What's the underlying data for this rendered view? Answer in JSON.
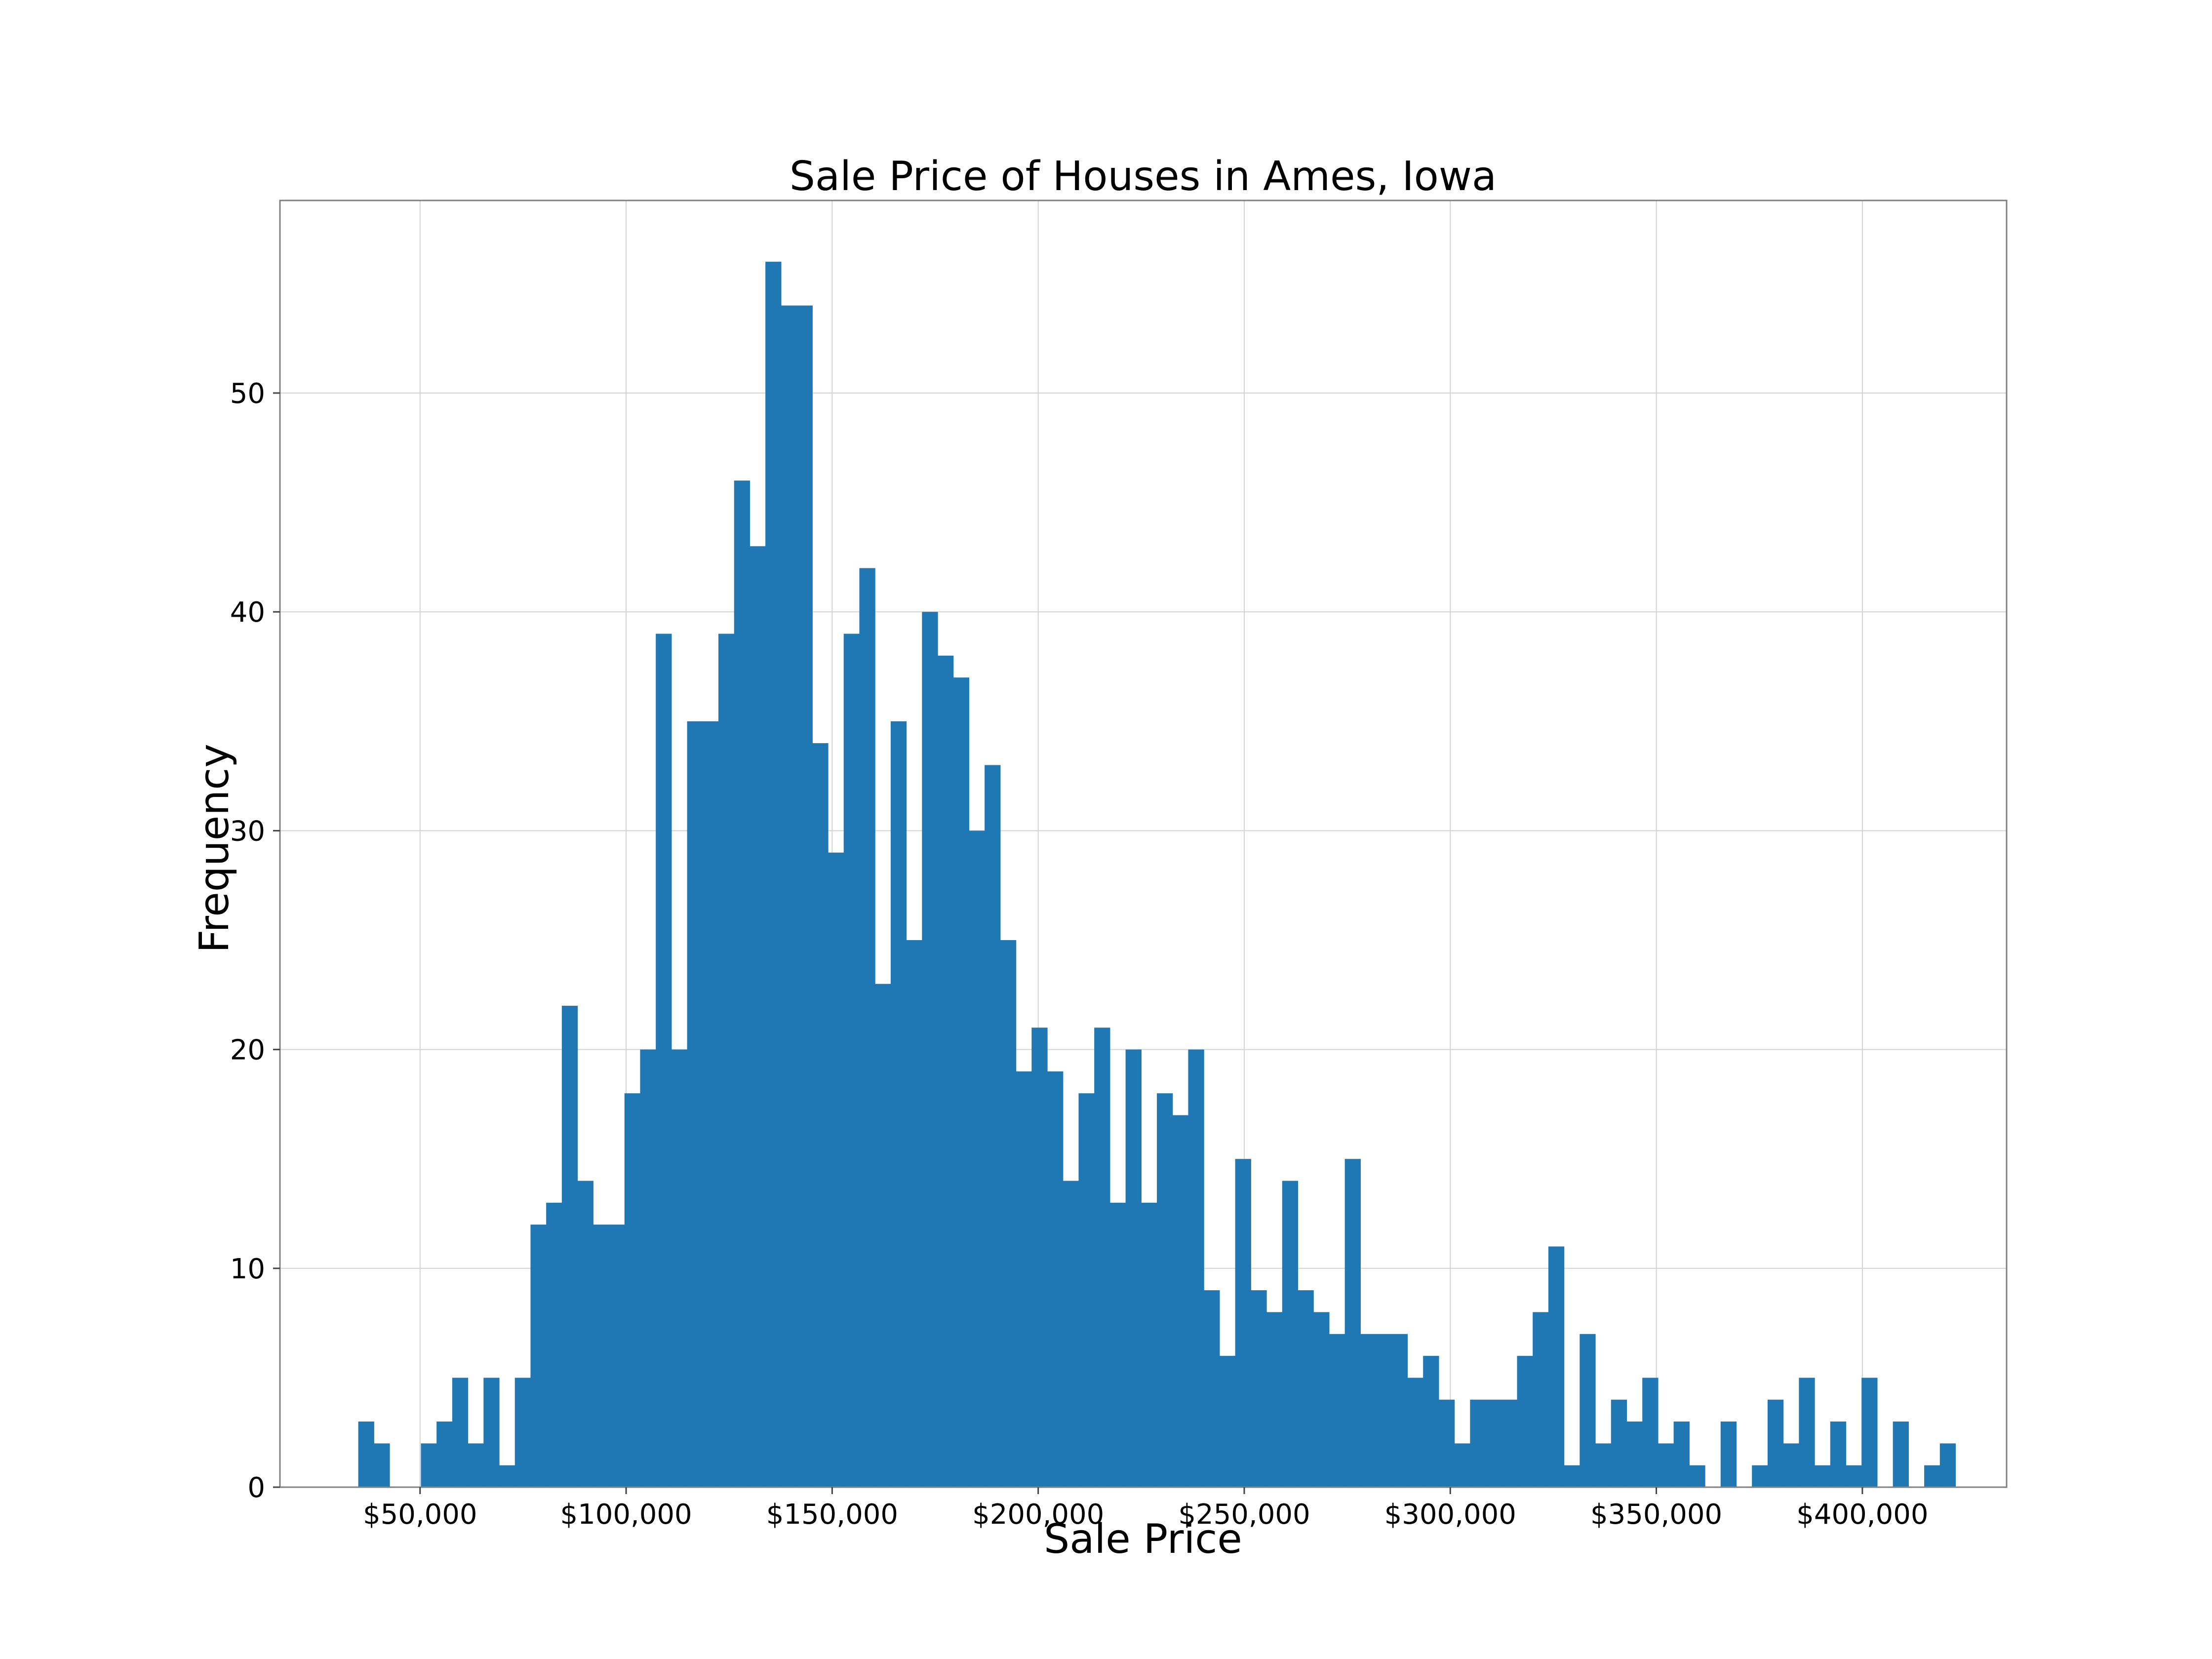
{
  "chart_data": {
    "type": "bar",
    "title": "Sale Price of Houses in Ames, Iowa",
    "xlabel": "Sale Price",
    "ylabel": "Frequency",
    "bar_color": "#1f77b4",
    "grid": true,
    "xlim": [
      16000,
      435000
    ],
    "ylim": [
      0,
      58.8
    ],
    "bin_start": 35000,
    "bin_width": 3800,
    "x_ticks": [
      {
        "value": 50000,
        "label": "$50,000"
      },
      {
        "value": 100000,
        "label": "$100,000"
      },
      {
        "value": 150000,
        "label": "$150,000"
      },
      {
        "value": 200000,
        "label": "$200,000"
      },
      {
        "value": 250000,
        "label": "$250,000"
      },
      {
        "value": 300000,
        "label": "$300,000"
      },
      {
        "value": 350000,
        "label": "$350,000"
      },
      {
        "value": 400000,
        "label": "$400,000"
      }
    ],
    "y_ticks": [
      {
        "value": 0,
        "label": "0"
      },
      {
        "value": 10,
        "label": "10"
      },
      {
        "value": 20,
        "label": "20"
      },
      {
        "value": 30,
        "label": "30"
      },
      {
        "value": 40,
        "label": "40"
      },
      {
        "value": 50,
        "label": "50"
      }
    ],
    "counts": [
      3,
      2,
      0,
      0,
      2,
      3,
      5,
      2,
      5,
      1,
      5,
      12,
      13,
      22,
      14,
      12,
      12,
      18,
      20,
      39,
      20,
      35,
      35,
      39,
      46,
      43,
      56,
      54,
      54,
      34,
      29,
      39,
      42,
      23,
      35,
      25,
      40,
      38,
      37,
      30,
      33,
      25,
      19,
      21,
      19,
      14,
      18,
      21,
      13,
      20,
      13,
      18,
      17,
      20,
      9,
      6,
      15,
      9,
      8,
      14,
      9,
      8,
      7,
      15,
      7,
      7,
      7,
      5,
      6,
      4,
      2,
      4,
      4,
      4,
      6,
      8,
      11,
      1,
      7,
      2,
      4,
      3,
      5,
      2,
      3,
      1,
      0,
      3,
      0,
      1,
      4,
      2,
      5,
      1,
      3,
      1,
      5,
      0,
      3,
      0,
      1,
      2
    ]
  }
}
